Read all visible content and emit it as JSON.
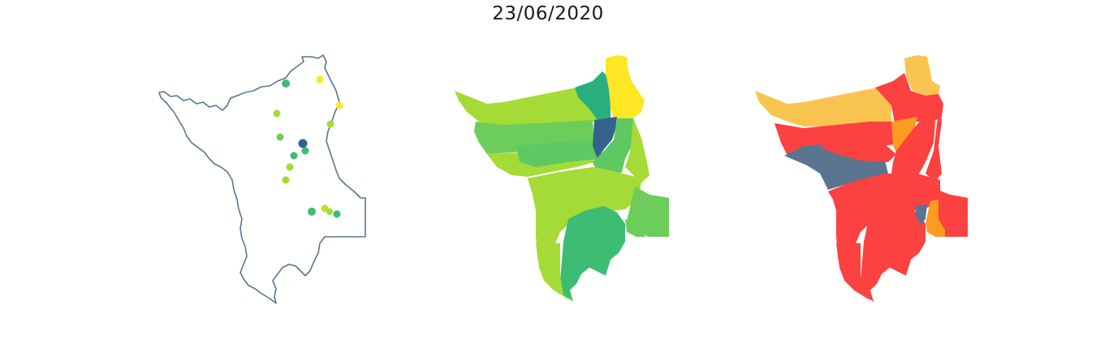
{
  "title": "23/06/2020",
  "colors": {
    "outline": "#5a7590",
    "dark_blue": "#33638d",
    "teal": "#2ab07f",
    "green": "#3dbc74",
    "mid_green": "#5ec962",
    "light_green": "#6ccd5a",
    "yellow_green": "#a5db36",
    "lime": "#c2df23",
    "yellow": "#fde725",
    "red": "#fc4141",
    "orange": "#fd9a20",
    "light_orange": "#f9c550",
    "slate": "#5a7590"
  },
  "stations": [
    {
      "color": "#3dbc74"
    },
    {
      "color": "#fde725"
    },
    {
      "color": "#fde725"
    },
    {
      "color": "#a5db36"
    },
    {
      "color": "#a5db36"
    },
    {
      "color": "#6ccd5a"
    },
    {
      "color": "#33638d"
    },
    {
      "color": "#3dbc74"
    },
    {
      "color": "#3dbc74"
    },
    {
      "color": "#a5db36"
    },
    {
      "color": "#a5db36"
    },
    {
      "color": "#3dbc74"
    },
    {
      "color": "#c2df23"
    },
    {
      "color": "#a5db36"
    },
    {
      "color": "#3dbc74"
    }
  ]
}
